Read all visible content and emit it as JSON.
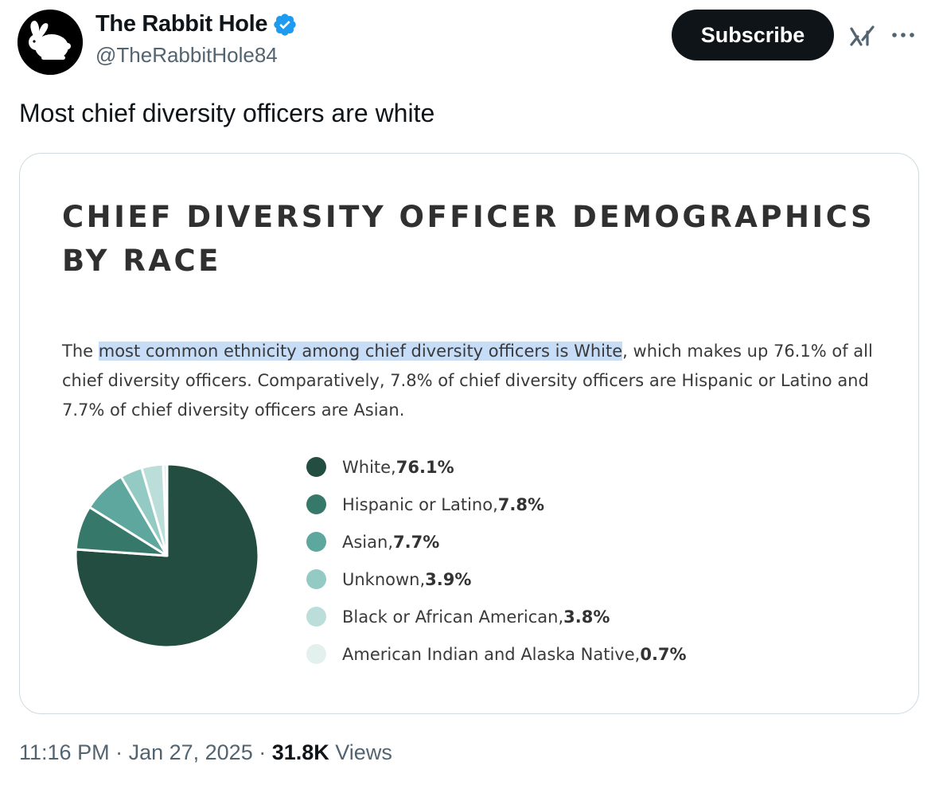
{
  "author": {
    "name": "The Rabbit Hole",
    "handle": "@TheRabbitHole84",
    "verified": true,
    "verified_color": "#1d9bf0"
  },
  "actions": {
    "subscribe_label": "Subscribe",
    "grok_icon": "grok-icon",
    "more_icon": "more-icon"
  },
  "tweet": {
    "text": "Most chief diversity officers are white"
  },
  "card": {
    "title": "CHIEF DIVERSITY OFFICER DEMOGRAPHICS BY RACE",
    "desc_prefix": "The ",
    "desc_highlight": "most common ethnicity among chief diversity officers is White",
    "desc_rest": ", which makes up 76.1% of all chief diversity officers. Comparatively, 7.8% of chief diversity officers are Hispanic or Latino and 7.7% of chief diversity officers are Asian."
  },
  "chart_data": {
    "type": "pie",
    "title": "CHIEF DIVERSITY OFFICER DEMOGRAPHICS BY RACE",
    "categories": [
      "White",
      "Hispanic or Latino",
      "Asian",
      "Unknown",
      "Black or African American",
      "American Indian and Alaska Native"
    ],
    "values": [
      76.1,
      7.8,
      7.7,
      3.9,
      3.8,
      0.7
    ],
    "value_labels": [
      "76.1%",
      "7.8%",
      "7.7%",
      "3.9%",
      "3.8%",
      "0.7%"
    ],
    "colors": [
      "#224d40",
      "#36786a",
      "#5ea79e",
      "#93cbc4",
      "#bcdedb",
      "#e2f0ee"
    ],
    "legend": "right"
  },
  "meta": {
    "time": "11:16 PM",
    "sep1": " · ",
    "date": "Jan 27, 2025",
    "sep2": " · ",
    "views_count": "31.8K",
    "views_label": " Views"
  }
}
